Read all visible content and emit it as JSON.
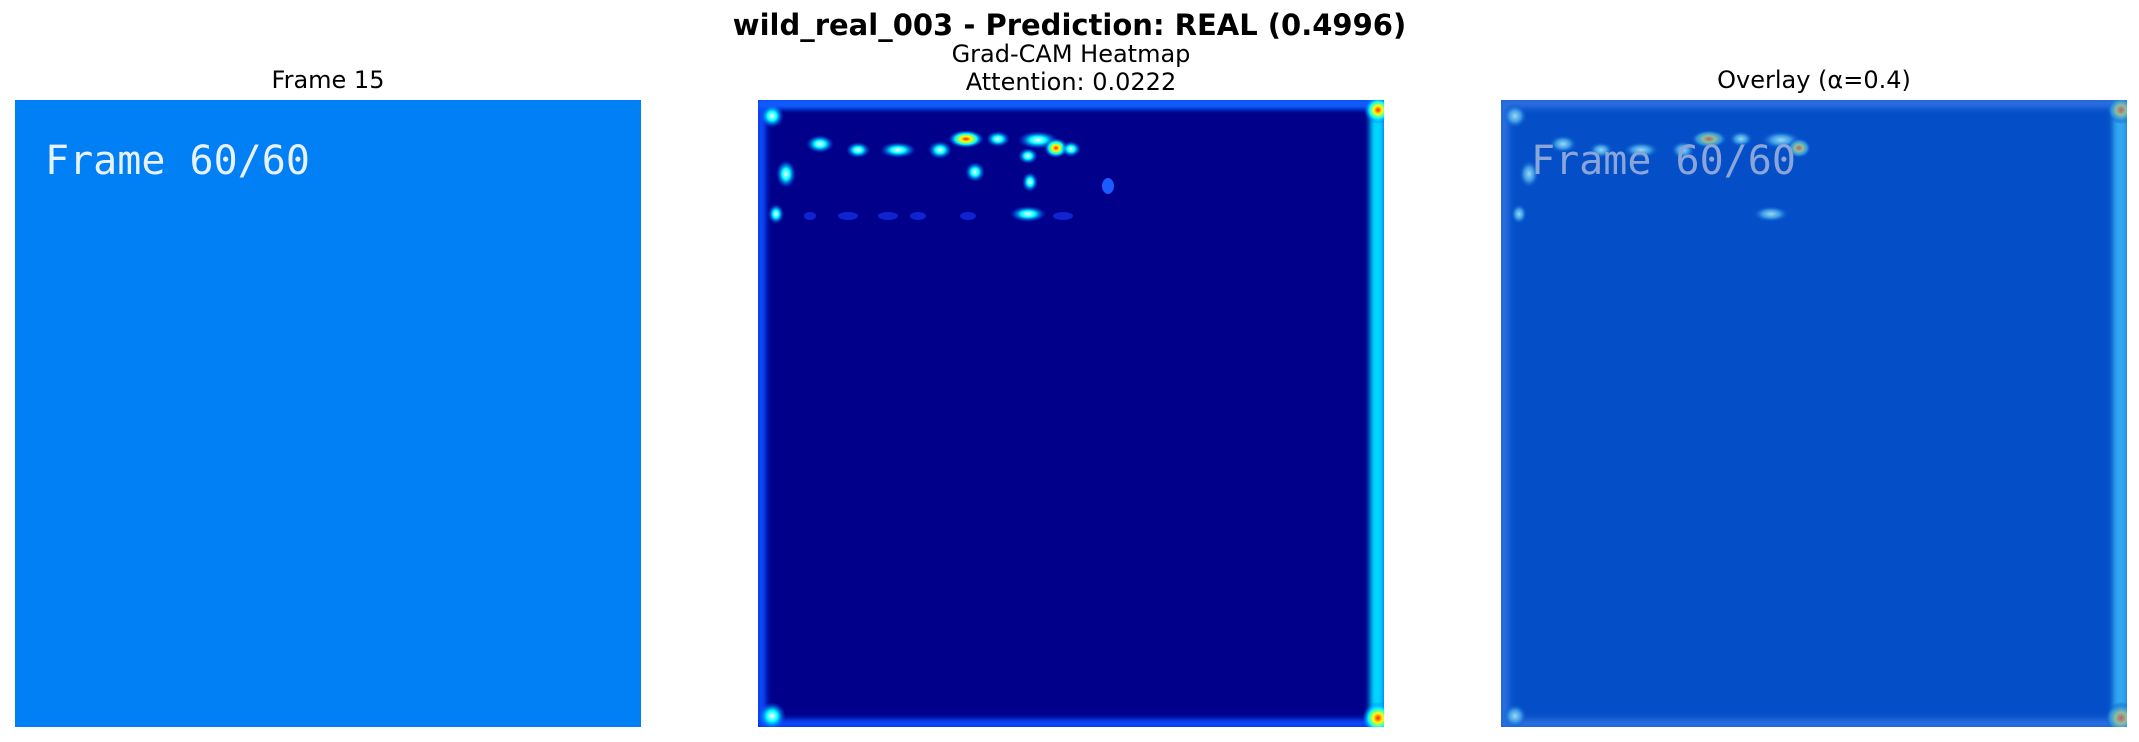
{
  "figure": {
    "suptitle": "wild_real_003 - Prediction: REAL (0.4996)"
  },
  "panels": [
    {
      "title_line1": "Frame 15",
      "title_line2": ""
    },
    {
      "title_line1": "Grad-CAM Heatmap",
      "title_line2": "Attention: 0.0222"
    },
    {
      "title_line1": "Overlay (α=0.4)",
      "title_line2": ""
    }
  ],
  "frame": {
    "overlay_text": "Frame 60/60",
    "background_color": "#017ff4",
    "text_color": "#e8f1ff"
  },
  "colors": {
    "heat_bg": "#00008a",
    "overlay_bg": "#044fc8"
  }
}
